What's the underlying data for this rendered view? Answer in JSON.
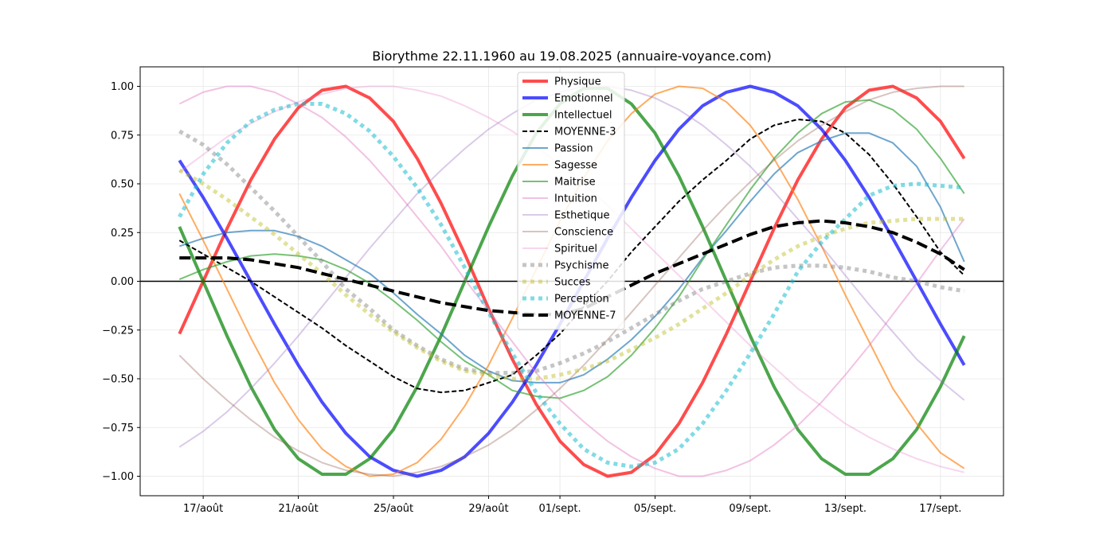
{
  "chart_data": {
    "type": "line",
    "title": "Biorythme 22.11.1960 au 19.08.2025 (annuaire-voyance.com)",
    "xlabel": "",
    "ylabel": "",
    "x_day_start": 0,
    "x_day_end": 33,
    "xlim": [
      -1.65,
      34.65
    ],
    "ylim": [
      -1.1,
      1.1
    ],
    "grid": true,
    "legend_position": "top-center",
    "x_ticks": [
      {
        "day": 1,
        "label": "17/août"
      },
      {
        "day": 5,
        "label": "21/août"
      },
      {
        "day": 9,
        "label": "25/août"
      },
      {
        "day": 13,
        "label": "29/août"
      },
      {
        "day": 16,
        "label": "01/sept."
      },
      {
        "day": 20,
        "label": "05/sept."
      },
      {
        "day": 24,
        "label": "09/sept."
      },
      {
        "day": 28,
        "label": "13/sept."
      },
      {
        "day": 32,
        "label": "17/sept."
      }
    ],
    "y_ticks": [
      {
        "value": 1.0,
        "label": "1.00"
      },
      {
        "value": 0.75,
        "label": "0.75"
      },
      {
        "value": 0.5,
        "label": "0.50"
      },
      {
        "value": 0.25,
        "label": "0.25"
      },
      {
        "value": 0.0,
        "label": "0.00"
      },
      {
        "value": -0.25,
        "label": "−0.25"
      },
      {
        "value": -0.5,
        "label": "−0.50"
      },
      {
        "value": -0.75,
        "label": "−0.75"
      },
      {
        "value": -1.0,
        "label": "−1.00"
      }
    ],
    "series": [
      {
        "name": "Physique",
        "color": "#ff0000",
        "style": "solid",
        "weight": 4,
        "opacity": 0.7,
        "values": [
          -0.27,
          0.0,
          0.27,
          0.52,
          0.73,
          0.89,
          0.98,
          1.0,
          0.94,
          0.82,
          0.63,
          0.4,
          0.14,
          -0.14,
          -0.4,
          -0.63,
          -0.82,
          -0.94,
          -1.0,
          -0.98,
          -0.89,
          -0.73,
          -0.52,
          -0.27,
          0.0,
          0.27,
          0.52,
          0.73,
          0.89,
          0.98,
          1.0,
          0.94,
          0.82,
          0.63
        ]
      },
      {
        "name": "Emotionnel",
        "color": "#0000ff",
        "style": "solid",
        "weight": 4,
        "opacity": 0.7,
        "values": [
          0.62,
          0.43,
          0.22,
          0.0,
          -0.22,
          -0.43,
          -0.62,
          -0.78,
          -0.9,
          -0.97,
          -1.0,
          -0.97,
          -0.9,
          -0.78,
          -0.62,
          -0.43,
          -0.22,
          0.0,
          0.22,
          0.43,
          0.62,
          0.78,
          0.9,
          0.97,
          1.0,
          0.97,
          0.9,
          0.78,
          0.62,
          0.43,
          0.22,
          0.0,
          -0.22,
          -0.43
        ]
      },
      {
        "name": "Intellectuel",
        "color": "#008000",
        "style": "solid",
        "weight": 4,
        "opacity": 0.7,
        "values": [
          0.28,
          0.0,
          -0.28,
          -0.54,
          -0.76,
          -0.91,
          -0.99,
          -0.99,
          -0.91,
          -0.76,
          -0.54,
          -0.28,
          0.0,
          0.28,
          0.54,
          0.76,
          0.91,
          0.99,
          0.99,
          0.91,
          0.76,
          0.54,
          0.28,
          0.0,
          -0.28,
          -0.54,
          -0.76,
          -0.91,
          -0.99,
          -0.99,
          -0.91,
          -0.76,
          -0.54,
          -0.28
        ]
      },
      {
        "name": "MOYENNE-3",
        "color": "#000000",
        "style": "dashed",
        "weight": 2,
        "opacity": 1,
        "values": [
          0.21,
          0.14,
          0.07,
          0.0,
          -0.08,
          -0.16,
          -0.24,
          -0.33,
          -0.41,
          -0.49,
          -0.55,
          -0.57,
          -0.56,
          -0.52,
          -0.48,
          -0.38,
          -0.27,
          -0.13,
          0.0,
          0.15,
          0.28,
          0.41,
          0.52,
          0.62,
          0.73,
          0.8,
          0.83,
          0.82,
          0.76,
          0.65,
          0.5,
          0.33,
          0.15,
          0.03
        ]
      },
      {
        "name": "Passion",
        "color": "#1f77b4",
        "style": "solid",
        "weight": 2,
        "opacity": 0.65,
        "values": [
          0.18,
          0.22,
          0.25,
          0.26,
          0.26,
          0.23,
          0.18,
          0.11,
          0.04,
          -0.06,
          -0.17,
          -0.27,
          -0.38,
          -0.46,
          -0.51,
          -0.52,
          -0.52,
          -0.48,
          -0.4,
          -0.3,
          -0.18,
          -0.04,
          0.12,
          0.26,
          0.41,
          0.55,
          0.66,
          0.72,
          0.76,
          0.76,
          0.71,
          0.59,
          0.38,
          0.1
        ]
      },
      {
        "name": "Sagesse",
        "color": "#ff7f0e",
        "style": "solid",
        "weight": 2,
        "opacity": 0.65,
        "values": [
          0.45,
          0.21,
          -0.04,
          -0.29,
          -0.52,
          -0.71,
          -0.86,
          -0.95,
          -1.0,
          -0.99,
          -0.93,
          -0.81,
          -0.64,
          -0.43,
          -0.19,
          0.06,
          0.31,
          0.53,
          0.72,
          0.86,
          0.96,
          1.0,
          0.99,
          0.92,
          0.8,
          0.63,
          0.42,
          0.18,
          -0.07,
          -0.31,
          -0.55,
          -0.73,
          -0.88,
          -0.96
        ]
      },
      {
        "name": "Maitrise",
        "color": "#2ca02c",
        "style": "solid",
        "weight": 2,
        "opacity": 0.65,
        "values": [
          0.01,
          0.06,
          0.1,
          0.13,
          0.14,
          0.13,
          0.11,
          0.06,
          -0.01,
          -0.1,
          -0.2,
          -0.31,
          -0.41,
          -0.48,
          -0.56,
          -0.59,
          -0.6,
          -0.56,
          -0.49,
          -0.38,
          -0.24,
          -0.08,
          0.11,
          0.29,
          0.47,
          0.63,
          0.76,
          0.86,
          0.92,
          0.93,
          0.88,
          0.78,
          0.63,
          0.45
        ]
      },
      {
        "name": "Intuition",
        "color": "#e377c2",
        "style": "solid",
        "weight": 2,
        "opacity": 0.45,
        "values": [
          0.91,
          0.97,
          1.0,
          1.0,
          0.97,
          0.91,
          0.84,
          0.74,
          0.62,
          0.48,
          0.33,
          0.18,
          0.01,
          -0.15,
          -0.31,
          -0.47,
          -0.61,
          -0.72,
          -0.82,
          -0.9,
          -0.96,
          -1.0,
          -1.0,
          -0.97,
          -0.92,
          -0.84,
          -0.74,
          -0.62,
          -0.48,
          -0.33,
          -0.17,
          -0.01,
          0.16,
          0.32
        ]
      },
      {
        "name": "Esthetique",
        "color": "#9467bd",
        "style": "solid",
        "weight": 2,
        "opacity": 0.35,
        "values": [
          -0.85,
          -0.77,
          -0.67,
          -0.55,
          -0.42,
          -0.28,
          -0.13,
          0.02,
          0.17,
          0.31,
          0.45,
          0.57,
          0.68,
          0.78,
          0.86,
          0.93,
          0.97,
          1.0,
          1.0,
          0.98,
          0.94,
          0.88,
          0.8,
          0.7,
          0.59,
          0.46,
          0.32,
          0.18,
          0.03,
          -0.12,
          -0.26,
          -0.4,
          -0.51,
          -0.61
        ]
      },
      {
        "name": "Conscience",
        "color": "#8c564b",
        "style": "solid",
        "weight": 2,
        "opacity": 0.35,
        "values": [
          -0.38,
          -0.5,
          -0.61,
          -0.71,
          -0.8,
          -0.87,
          -0.93,
          -0.97,
          -0.99,
          -1.0,
          -0.98,
          -0.95,
          -0.9,
          -0.84,
          -0.76,
          -0.66,
          -0.55,
          -0.43,
          -0.3,
          -0.16,
          -0.02,
          0.12,
          0.26,
          0.39,
          0.51,
          0.62,
          0.72,
          0.8,
          0.87,
          0.93,
          0.97,
          0.99,
          1.0,
          1.0
        ]
      },
      {
        "name": "Spirituel",
        "color": "#e377c2",
        "style": "solid",
        "weight": 2,
        "opacity": 0.3,
        "values": [
          0.56,
          0.65,
          0.74,
          0.81,
          0.87,
          0.92,
          0.96,
          0.99,
          1.0,
          1.0,
          0.98,
          0.95,
          0.9,
          0.84,
          0.77,
          0.69,
          0.6,
          0.5,
          0.39,
          0.27,
          0.15,
          0.03,
          -0.09,
          -0.21,
          -0.33,
          -0.44,
          -0.55,
          -0.64,
          -0.73,
          -0.8,
          -0.86,
          -0.91,
          -0.95,
          -0.98
        ]
      },
      {
        "name": "Psychisme",
        "color": "#7f7f7f",
        "style": "dotted",
        "weight": 5,
        "opacity": 0.45,
        "values": [
          0.77,
          0.7,
          0.6,
          0.48,
          0.36,
          0.23,
          0.1,
          -0.04,
          -0.14,
          -0.25,
          -0.33,
          -0.4,
          -0.45,
          -0.47,
          -0.47,
          -0.46,
          -0.42,
          -0.37,
          -0.31,
          -0.24,
          -0.17,
          -0.1,
          -0.04,
          0.0,
          0.04,
          0.07,
          0.08,
          0.08,
          0.07,
          0.05,
          0.02,
          0.0,
          -0.03,
          -0.05
        ]
      },
      {
        "name": "Succes",
        "color": "#bcbd22",
        "style": "dotted",
        "weight": 5,
        "opacity": 0.45,
        "values": [
          0.57,
          0.5,
          0.42,
          0.33,
          0.24,
          0.14,
          0.04,
          -0.07,
          -0.17,
          -0.26,
          -0.34,
          -0.41,
          -0.46,
          -0.48,
          -0.5,
          -0.5,
          -0.48,
          -0.45,
          -0.41,
          -0.35,
          -0.29,
          -0.22,
          -0.14,
          -0.06,
          0.03,
          0.11,
          0.18,
          0.23,
          0.27,
          0.3,
          0.31,
          0.32,
          0.32,
          0.32
        ]
      },
      {
        "name": "Perception",
        "color": "#17becf",
        "style": "dotted",
        "weight": 5,
        "opacity": 0.55,
        "values": [
          0.33,
          0.55,
          0.71,
          0.82,
          0.88,
          0.91,
          0.91,
          0.86,
          0.77,
          0.64,
          0.48,
          0.29,
          0.07,
          -0.16,
          -0.37,
          -0.57,
          -0.73,
          -0.86,
          -0.93,
          -0.95,
          -0.93,
          -0.86,
          -0.73,
          -0.56,
          -0.37,
          -0.17,
          0.05,
          0.2,
          0.32,
          0.44,
          0.49,
          0.5,
          0.49,
          0.48
        ]
      },
      {
        "name": "MOYENNE-7",
        "color": "#000000",
        "style": "dashed",
        "weight": 4,
        "opacity": 1,
        "values": [
          0.12,
          0.12,
          0.12,
          0.11,
          0.09,
          0.07,
          0.04,
          0.01,
          -0.02,
          -0.05,
          -0.08,
          -0.11,
          -0.13,
          -0.15,
          -0.16,
          -0.17,
          -0.17,
          -0.14,
          -0.08,
          -0.02,
          0.04,
          0.09,
          0.14,
          0.19,
          0.24,
          0.28,
          0.3,
          0.31,
          0.3,
          0.28,
          0.25,
          0.2,
          0.14,
          0.06
        ]
      }
    ]
  }
}
